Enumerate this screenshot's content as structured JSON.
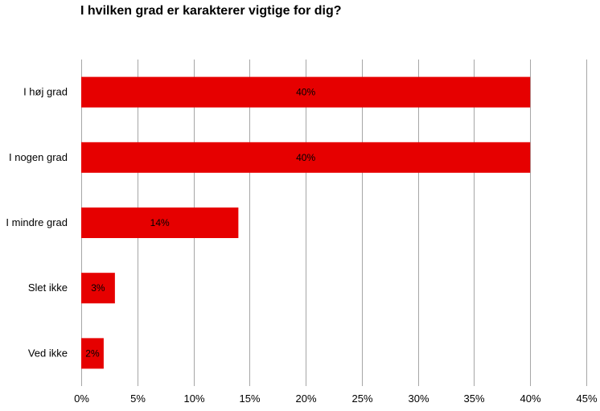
{
  "chart_data": {
    "type": "bar",
    "orientation": "horizontal",
    "title": "I hvilken grad er karakterer vigtige for dig?",
    "categories": [
      "I høj grad",
      "I nogen grad",
      "I mindre grad",
      "Slet ikke",
      "Ved ikke"
    ],
    "values": [
      40,
      40,
      14,
      3,
      2
    ],
    "data_labels": [
      "40%",
      "40%",
      "14%",
      "3%",
      "2%"
    ],
    "xlim": [
      0,
      45
    ],
    "x_ticks": [
      0,
      5,
      10,
      15,
      20,
      25,
      30,
      35,
      40,
      45
    ],
    "x_tick_labels": [
      "0%",
      "5%",
      "10%",
      "15%",
      "20%",
      "25%",
      "30%",
      "35%",
      "40%",
      "45%"
    ],
    "grid": "vertical",
    "legend": "none",
    "bar_color": "#e60000",
    "grid_color": "#a6a6a6"
  }
}
